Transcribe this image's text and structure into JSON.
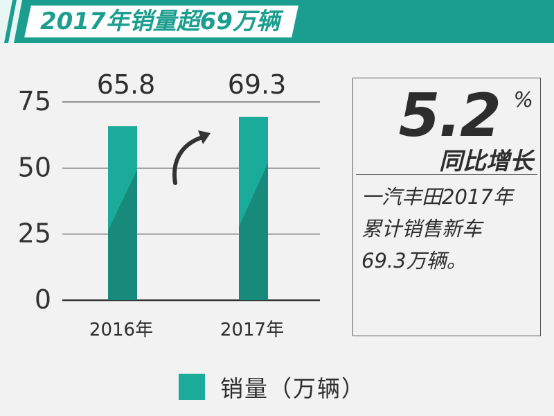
{
  "banner": {
    "title": "2017年销量超69万辆"
  },
  "chart_data": {
    "type": "bar",
    "categories": [
      "2016年",
      "2017年"
    ],
    "series": [
      {
        "name": "销量（万辆）",
        "values": [
          65.8,
          69.3
        ]
      }
    ],
    "data_labels": [
      "65.8",
      "69.3"
    ],
    "y_ticks": [
      "0",
      "25",
      "50",
      "75"
    ],
    "ylim": [
      0,
      75
    ],
    "grid": true,
    "legend": "bottom",
    "annotation": "curved arrow between bars indicating growth",
    "colors": {
      "bar": "#1aab9a",
      "bar_shade": "#178a7c"
    }
  },
  "stat": {
    "number": "5.2",
    "unit": "%",
    "label": "同比增长",
    "description_lines": [
      "一汽丰田2017年",
      "累计销售新车",
      "69.3万辆。"
    ]
  },
  "legend": {
    "label": "销量（万辆）"
  },
  "colors": {
    "accent": "#1b9e8f",
    "background": "#f2f2f2",
    "text": "#2d2d2d"
  }
}
